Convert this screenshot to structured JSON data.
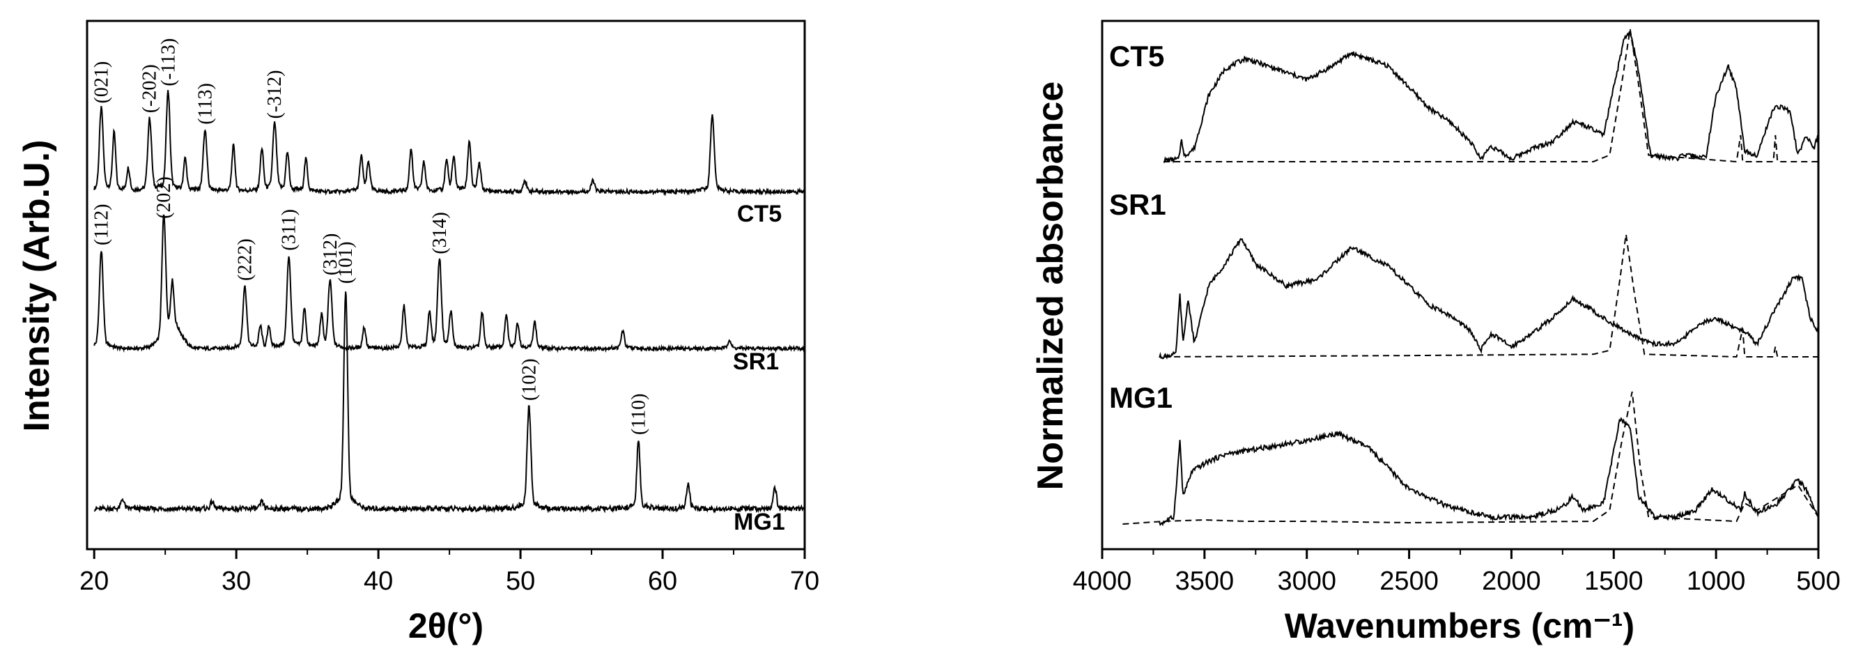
{
  "chart_data": [
    {
      "type": "line",
      "title": "",
      "xlabel": "2θ(°)",
      "ylabel": "Intensity (Arb.U.)",
      "xlim": [
        19.5,
        70
      ],
      "xticks": [
        20,
        30,
        40,
        50,
        60,
        70
      ],
      "yticks": [],
      "series": [
        {
          "name": "CT5",
          "baseline": 0.12,
          "peaks": [
            {
              "x": 20.5,
              "h": 0.43,
              "label": "(021)"
            },
            {
              "x": 21.4,
              "h": 0.3
            },
            {
              "x": 22.4,
              "h": 0.12
            },
            {
              "x": 23.9,
              "h": 0.38,
              "label": "(-202)"
            },
            {
              "x": 25.2,
              "h": 0.52,
              "label": "(-113)"
            },
            {
              "x": 26.4,
              "h": 0.17
            },
            {
              "x": 27.8,
              "h": 0.32,
              "label": "(113)"
            },
            {
              "x": 29.8,
              "h": 0.24
            },
            {
              "x": 31.8,
              "h": 0.22
            },
            {
              "x": 32.7,
              "h": 0.35,
              "label": "(-312)"
            },
            {
              "x": 33.6,
              "h": 0.2
            },
            {
              "x": 34.9,
              "h": 0.17
            },
            {
              "x": 38.8,
              "h": 0.18
            },
            {
              "x": 39.3,
              "h": 0.15
            },
            {
              "x": 42.3,
              "h": 0.22
            },
            {
              "x": 43.2,
              "h": 0.15
            },
            {
              "x": 44.8,
              "h": 0.16
            },
            {
              "x": 45.3,
              "h": 0.17
            },
            {
              "x": 46.4,
              "h": 0.26
            },
            {
              "x": 47.1,
              "h": 0.14
            },
            {
              "x": 50.3,
              "h": 0.06
            },
            {
              "x": 55.1,
              "h": 0.06
            },
            {
              "x": 63.5,
              "h": 0.4
            }
          ]
        },
        {
          "name": "SR1",
          "baseline": 0.08,
          "peaks": [
            {
              "x": 20.5,
              "h": 0.55,
              "label": "(112)"
            },
            {
              "x": 24.9,
              "h": 0.7,
              "label": "(202)"
            },
            {
              "x": 25.5,
              "h": 0.25
            },
            {
              "x": 30.6,
              "h": 0.35,
              "label": "(222)"
            },
            {
              "x": 31.7,
              "h": 0.12
            },
            {
              "x": 32.3,
              "h": 0.12
            },
            {
              "x": 33.7,
              "h": 0.52,
              "label": "(311)"
            },
            {
              "x": 34.8,
              "h": 0.22
            },
            {
              "x": 36.0,
              "h": 0.18
            },
            {
              "x": 36.6,
              "h": 0.38,
              "label": "(312)"
            },
            {
              "x": 39.0,
              "h": 0.12
            },
            {
              "x": 41.8,
              "h": 0.24
            },
            {
              "x": 43.6,
              "h": 0.2
            },
            {
              "x": 44.3,
              "h": 0.5,
              "label": "(314)"
            },
            {
              "x": 45.1,
              "h": 0.2
            },
            {
              "x": 47.3,
              "h": 0.2
            },
            {
              "x": 49.0,
              "h": 0.18
            },
            {
              "x": 49.8,
              "h": 0.14
            },
            {
              "x": 51.0,
              "h": 0.15
            },
            {
              "x": 57.2,
              "h": 0.1
            },
            {
              "x": 64.7,
              "h": 0.05
            }
          ]
        },
        {
          "name": "MG1",
          "baseline": 0.05,
          "peaks": [
            {
              "x": 22.0,
              "h": 0.04
            },
            {
              "x": 28.3,
              "h": 0.03
            },
            {
              "x": 31.8,
              "h": 0.03
            },
            {
              "x": 37.7,
              "h": 0.9,
              "label": "(101)"
            },
            {
              "x": 50.6,
              "h": 0.42,
              "label": "(102)"
            },
            {
              "x": 58.3,
              "h": 0.28,
              "label": "(110)"
            },
            {
              "x": 61.8,
              "h": 0.1
            },
            {
              "x": 67.9,
              "h": 0.09
            }
          ]
        }
      ]
    },
    {
      "type": "line",
      "title": "",
      "xlabel": "Wavenumbers (cm⁻¹)",
      "ylabel": "Normalized absorbance",
      "xlim": [
        4000,
        500
      ],
      "xticks": [
        4000,
        3500,
        3000,
        2500,
        2000,
        1500,
        1000,
        500
      ],
      "yticks": [],
      "legend": [
        {
          "style": "solid",
          "label": ""
        },
        {
          "style": "dashed",
          "label": ""
        }
      ],
      "series": [
        {
          "name": "CT5",
          "solid": [
            [
              3700,
              0.01
            ],
            [
              3625,
              0.02
            ],
            [
              3612,
              0.18
            ],
            [
              3600,
              0.04
            ],
            [
              3550,
              0.1
            ],
            [
              3480,
              0.5
            ],
            [
              3400,
              0.7
            ],
            [
              3300,
              0.78
            ],
            [
              3150,
              0.7
            ],
            [
              3000,
              0.62
            ],
            [
              2900,
              0.7
            ],
            [
              2780,
              0.82
            ],
            [
              2600,
              0.72
            ],
            [
              2400,
              0.4
            ],
            [
              2300,
              0.3
            ],
            [
              2200,
              0.15
            ],
            [
              2150,
              0.02
            ],
            [
              2100,
              0.12
            ],
            [
              2000,
              0.02
            ],
            [
              1900,
              0.1
            ],
            [
              1800,
              0.15
            ],
            [
              1700,
              0.3
            ],
            [
              1650,
              0.28
            ],
            [
              1550,
              0.2
            ],
            [
              1450,
              0.92
            ],
            [
              1420,
              0.98
            ],
            [
              1380,
              0.7
            ],
            [
              1320,
              0.05
            ],
            [
              1200,
              0.02
            ],
            [
              1150,
              0.05
            ],
            [
              1050,
              0.03
            ],
            [
              1000,
              0.5
            ],
            [
              940,
              0.72
            ],
            [
              900,
              0.55
            ],
            [
              860,
              0.08
            ],
            [
              800,
              0.05
            ],
            [
              720,
              0.4
            ],
            [
              680,
              0.42
            ],
            [
              640,
              0.38
            ],
            [
              600,
              0.05
            ],
            [
              560,
              0.2
            ],
            [
              520,
              0.1
            ],
            [
              500,
              0.22
            ]
          ],
          "dashed": [
            [
              3700,
              0.0
            ],
            [
              2500,
              0.0
            ],
            [
              1600,
              0.0
            ],
            [
              1520,
              0.05
            ],
            [
              1460,
              0.6
            ],
            [
              1420,
              1.0
            ],
            [
              1380,
              0.6
            ],
            [
              1330,
              0.05
            ],
            [
              900,
              0.0
            ],
            [
              880,
              0.2
            ],
            [
              870,
              0.0
            ],
            [
              720,
              0.0
            ],
            [
              710,
              0.2
            ],
            [
              700,
              0.0
            ],
            [
              500,
              0.0
            ]
          ]
        },
        {
          "name": "SR1",
          "solid": [
            [
              3720,
              0.0
            ],
            [
              3640,
              0.02
            ],
            [
              3620,
              0.48
            ],
            [
              3605,
              0.1
            ],
            [
              3580,
              0.45
            ],
            [
              3550,
              0.1
            ],
            [
              3480,
              0.55
            ],
            [
              3400,
              0.72
            ],
            [
              3320,
              0.92
            ],
            [
              3250,
              0.72
            ],
            [
              3100,
              0.55
            ],
            [
              2950,
              0.6
            ],
            [
              2780,
              0.85
            ],
            [
              2600,
              0.7
            ],
            [
              2400,
              0.4
            ],
            [
              2300,
              0.32
            ],
            [
              2200,
              0.2
            ],
            [
              2150,
              0.05
            ],
            [
              2100,
              0.18
            ],
            [
              2000,
              0.08
            ],
            [
              1900,
              0.18
            ],
            [
              1800,
              0.3
            ],
            [
              1700,
              0.45
            ],
            [
              1620,
              0.38
            ],
            [
              1550,
              0.3
            ],
            [
              1450,
              0.2
            ],
            [
              1300,
              0.1
            ],
            [
              1200,
              0.1
            ],
            [
              1050,
              0.28
            ],
            [
              1000,
              0.3
            ],
            [
              900,
              0.22
            ],
            [
              860,
              0.2
            ],
            [
              800,
              0.1
            ],
            [
              700,
              0.4
            ],
            [
              620,
              0.62
            ],
            [
              580,
              0.6
            ],
            [
              540,
              0.3
            ],
            [
              500,
              0.2
            ]
          ],
          "dashed": [
            [
              3700,
              0.0
            ],
            [
              2500,
              0.01
            ],
            [
              1600,
              0.02
            ],
            [
              1520,
              0.05
            ],
            [
              1470,
              0.6
            ],
            [
              1440,
              0.95
            ],
            [
              1400,
              0.5
            ],
            [
              1350,
              0.02
            ],
            [
              900,
              0.0
            ],
            [
              870,
              0.22
            ],
            [
              860,
              0.0
            ],
            [
              720,
              0.0
            ],
            [
              710,
              0.08
            ],
            [
              700,
              0.0
            ],
            [
              500,
              0.0
            ]
          ]
        },
        {
          "name": "MG1",
          "solid": [
            [
              3720,
              0.0
            ],
            [
              3650,
              0.05
            ],
            [
              3620,
              0.6
            ],
            [
              3605,
              0.2
            ],
            [
              3560,
              0.38
            ],
            [
              3480,
              0.45
            ],
            [
              3400,
              0.5
            ],
            [
              3200,
              0.55
            ],
            [
              3000,
              0.6
            ],
            [
              2850,
              0.65
            ],
            [
              2700,
              0.55
            ],
            [
              2500,
              0.25
            ],
            [
              2300,
              0.12
            ],
            [
              2100,
              0.05
            ],
            [
              1900,
              0.05
            ],
            [
              1750,
              0.12
            ],
            [
              1700,
              0.2
            ],
            [
              1650,
              0.1
            ],
            [
              1550,
              0.15
            ],
            [
              1470,
              0.75
            ],
            [
              1420,
              0.7
            ],
            [
              1380,
              0.2
            ],
            [
              1300,
              0.05
            ],
            [
              1200,
              0.05
            ],
            [
              1100,
              0.1
            ],
            [
              1020,
              0.25
            ],
            [
              950,
              0.18
            ],
            [
              880,
              0.1
            ],
            [
              860,
              0.22
            ],
            [
              800,
              0.08
            ],
            [
              700,
              0.15
            ],
            [
              600,
              0.32
            ],
            [
              560,
              0.25
            ],
            [
              500,
              0.05
            ]
          ],
          "dashed": [
            [
              3900,
              0.0
            ],
            [
              3700,
              0.02
            ],
            [
              3500,
              0.03
            ],
            [
              3300,
              0.02
            ],
            [
              3000,
              0.02
            ],
            [
              2500,
              0.01
            ],
            [
              1600,
              0.02
            ],
            [
              1520,
              0.1
            ],
            [
              1460,
              0.6
            ],
            [
              1410,
              0.95
            ],
            [
              1370,
              0.4
            ],
            [
              1330,
              0.05
            ],
            [
              900,
              0.02
            ],
            [
              860,
              0.15
            ],
            [
              800,
              0.1
            ],
            [
              600,
              0.28
            ],
            [
              500,
              0.05
            ]
          ]
        }
      ]
    }
  ]
}
